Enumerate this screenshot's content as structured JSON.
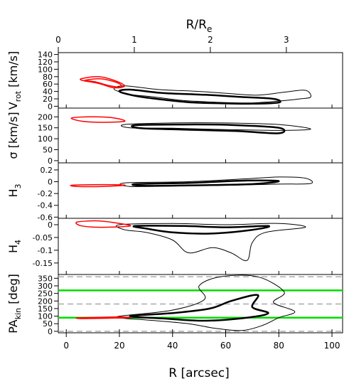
{
  "chart_data": {
    "type": "contour",
    "top_axis": {
      "label_main": "R/R",
      "label_sub": "e",
      "ticks": [
        0,
        1,
        2,
        3
      ],
      "range": [
        0,
        3.74
      ]
    },
    "xaxis": {
      "label": "R [arcsec]",
      "ticks": [
        0,
        20,
        40,
        60,
        80,
        100
      ],
      "range": [
        -3,
        104
      ]
    },
    "colors": {
      "mpfit": "#000000",
      "inner": "#ff0000",
      "line_of_nodes": "#00dd00",
      "reference": "#aaaaaa"
    },
    "panels": [
      {
        "id": "vrot",
        "ylabel_main": "V",
        "ylabel_sub": "rot",
        "ylabel_tail": " [km/s]",
        "ylim": [
          -5,
          145
        ],
        "yticks": [
          0,
          20,
          40,
          60,
          80,
          100,
          120,
          140
        ],
        "outer_contour": [
          [
            22,
            55
          ],
          [
            35,
            45
          ],
          [
            50,
            40
          ],
          [
            62,
            34
          ],
          [
            72,
            30
          ],
          [
            82,
            38
          ],
          [
            90,
            43
          ],
          [
            92,
            25
          ],
          [
            88,
            20
          ],
          [
            80,
            14
          ],
          [
            70,
            9
          ],
          [
            60,
            10
          ],
          [
            50,
            13
          ],
          [
            42,
            17
          ],
          [
            32,
            26
          ],
          [
            24,
            32
          ],
          [
            18,
            46
          ]
        ],
        "mid_contour": [
          [
            24,
            45
          ],
          [
            36,
            36
          ],
          [
            52,
            31
          ],
          [
            66,
            25
          ],
          [
            78,
            20
          ],
          [
            80,
            10
          ],
          [
            70,
            7
          ],
          [
            58,
            8
          ],
          [
            46,
            11
          ],
          [
            34,
            20
          ],
          [
            26,
            28
          ],
          [
            20,
            40
          ]
        ],
        "inner_red": [
          [
            6,
            75
          ],
          [
            12,
            80
          ],
          [
            18,
            70
          ],
          [
            22,
            55
          ],
          [
            18,
            50
          ],
          [
            12,
            62
          ],
          [
            6,
            70
          ]
        ],
        "inner_red_2": [
          [
            7,
            70
          ],
          [
            13,
            74
          ],
          [
            19,
            64
          ],
          [
            21,
            52
          ],
          [
            16,
            56
          ],
          [
            11,
            66
          ]
        ]
      },
      {
        "id": "sigma",
        "ylabel_main": "σ [km/s]",
        "ylim": [
          -10,
          240
        ],
        "yticks": [
          0,
          50,
          100,
          150,
          200
        ],
        "outer_contour": [
          [
            22,
            165
          ],
          [
            40,
            172
          ],
          [
            60,
            172
          ],
          [
            80,
            165
          ],
          [
            92,
            145
          ],
          [
            82,
            138
          ],
          [
            60,
            142
          ],
          [
            40,
            148
          ],
          [
            24,
            150
          ]
        ],
        "mid_contour": [
          [
            26,
            162
          ],
          [
            44,
            165
          ],
          [
            62,
            163
          ],
          [
            80,
            150
          ],
          [
            80,
            125
          ],
          [
            64,
            135
          ],
          [
            44,
            142
          ],
          [
            28,
            148
          ]
        ],
        "inner_red": [
          [
            2,
            195
          ],
          [
            10,
            200
          ],
          [
            18,
            195
          ],
          [
            22,
            180
          ],
          [
            14,
            175
          ],
          [
            6,
            180
          ]
        ]
      },
      {
        "id": "h3",
        "ylabel_main": "H",
        "ylabel_sub": "3",
        "ylim": [
          -0.62,
          0.32
        ],
        "yticks": [
          0.2,
          0.0,
          -0.2,
          -0.4,
          -0.6
        ],
        "outer_contour": [
          [
            22,
            -0.02
          ],
          [
            45,
            0.0
          ],
          [
            68,
            0.05
          ],
          [
            80,
            0.08
          ],
          [
            90,
            0.06
          ],
          [
            92,
            -0.03
          ],
          [
            80,
            -0.04
          ],
          [
            62,
            -0.06
          ],
          [
            42,
            -0.07
          ],
          [
            24,
            -0.08
          ]
        ],
        "mid_contour": [
          [
            26,
            -0.04
          ],
          [
            46,
            -0.02
          ],
          [
            68,
            0.02
          ],
          [
            80,
            0.01
          ],
          [
            70,
            -0.04
          ],
          [
            50,
            -0.06
          ],
          [
            30,
            -0.07
          ]
        ],
        "inner_red": [
          [
            2,
            -0.06
          ],
          [
            10,
            -0.05
          ],
          [
            18,
            -0.05
          ],
          [
            22,
            -0.06
          ],
          [
            14,
            -0.08
          ],
          [
            4,
            -0.08
          ]
        ]
      },
      {
        "id": "h4",
        "ylabel_main": "H",
        "ylabel_sub": "4",
        "ylim": [
          -0.195,
          0.025
        ],
        "yticks": [
          0.0,
          -0.05,
          -0.1,
          -0.15
        ],
        "outer_contour": [
          [
            20,
            0.0
          ],
          [
            40,
            0.005
          ],
          [
            60,
            0.0
          ],
          [
            80,
            0.005
          ],
          [
            90,
            -0.01
          ],
          [
            75,
            -0.03
          ],
          [
            70,
            -0.07
          ],
          [
            68,
            -0.14
          ],
          [
            62,
            -0.11
          ],
          [
            55,
            -0.09
          ],
          [
            46,
            -0.11
          ],
          [
            40,
            -0.06
          ],
          [
            30,
            -0.03
          ],
          [
            22,
            -0.02
          ]
        ],
        "mid_contour": [
          [
            26,
            -0.005
          ],
          [
            44,
            -0.005
          ],
          [
            60,
            -0.01
          ],
          [
            76,
            -0.005
          ],
          [
            70,
            -0.02
          ],
          [
            54,
            -0.035
          ],
          [
            40,
            -0.03
          ],
          [
            30,
            -0.015
          ]
        ],
        "inner_red": [
          [
            4,
            0.01
          ],
          [
            12,
            0.015
          ],
          [
            20,
            0.005
          ],
          [
            24,
            -0.005
          ],
          [
            14,
            -0.01
          ],
          [
            6,
            -0.005
          ]
        ]
      },
      {
        "id": "pa",
        "ylabel_main": "PA",
        "ylabel_sub": "kin",
        "ylabel_tail": " [deg]",
        "ylim": [
          -10,
          375
        ],
        "yticks": [
          0,
          50,
          100,
          150,
          200,
          250,
          300,
          350
        ],
        "reference_lines": [
          0,
          90,
          180,
          270,
          360
        ],
        "green_lines": [
          90,
          270
        ],
        "outer_contour": [
          [
            20,
            100
          ],
          [
            40,
            140
          ],
          [
            52,
            210
          ],
          [
            50,
            300
          ],
          [
            58,
            360
          ],
          [
            72,
            360
          ],
          [
            82,
            260
          ],
          [
            78,
            190
          ],
          [
            86,
            130
          ],
          [
            80,
            90
          ],
          [
            74,
            40
          ],
          [
            66,
            5
          ],
          [
            56,
            20
          ],
          [
            46,
            50
          ],
          [
            30,
            75
          ],
          [
            22,
            85
          ]
        ],
        "mid_contour": [
          [
            24,
            100
          ],
          [
            40,
            120
          ],
          [
            54,
            150
          ],
          [
            62,
            200
          ],
          [
            72,
            240
          ],
          [
            70,
            160
          ],
          [
            76,
            120
          ],
          [
            68,
            90
          ],
          [
            52,
            70
          ],
          [
            36,
            85
          ]
        ],
        "inner_red": [
          [
            4,
            88
          ],
          [
            12,
            92
          ],
          [
            20,
            95
          ],
          [
            24,
            90
          ],
          [
            14,
            86
          ],
          [
            6,
            84
          ]
        ]
      }
    ]
  }
}
